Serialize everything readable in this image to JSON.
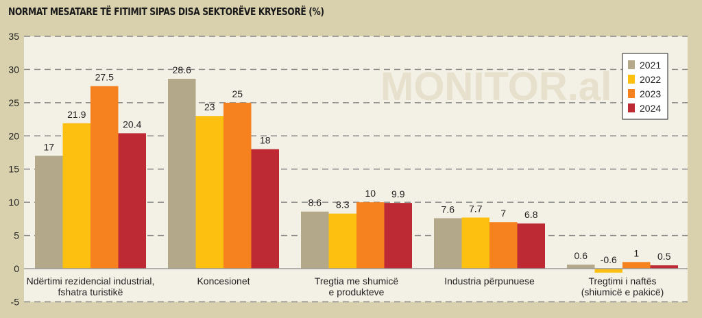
{
  "chart_data": {
    "type": "bar",
    "title": "NORMAT MESATARE TË FITIMIT SIPAS DISA SEKTORËVE KRYESORË (%)",
    "watermark": "MONITOR.al",
    "categories": [
      [
        "Ndërtimi rezidencial industrial,",
        "fshatra turistikë"
      ],
      [
        "Koncesionet"
      ],
      [
        "Tregtia me shumicë",
        "e produkteve"
      ],
      [
        "Industria përpunuese"
      ],
      [
        "Tregtimi i naftës",
        "(shiumicë e pakicë)"
      ]
    ],
    "series": [
      {
        "name": "2021",
        "color": "#b3a889",
        "values": [
          17,
          28.6,
          8.6,
          7.6,
          0.6
        ]
      },
      {
        "name": "2022",
        "color": "#fdc010",
        "values": [
          21.9,
          23,
          8.3,
          7.7,
          -0.6
        ]
      },
      {
        "name": "2023",
        "color": "#f5821f",
        "values": [
          27.5,
          25,
          10,
          7,
          1
        ]
      },
      {
        "name": "2024",
        "color": "#be2a33",
        "values": [
          20.4,
          18,
          9.9,
          6.8,
          0.5
        ]
      }
    ],
    "ylim": [
      -5,
      35
    ],
    "yticks": [
      35,
      30,
      25,
      20,
      15,
      10,
      5,
      0,
      -5
    ],
    "grid": true,
    "legend": "top-right"
  }
}
